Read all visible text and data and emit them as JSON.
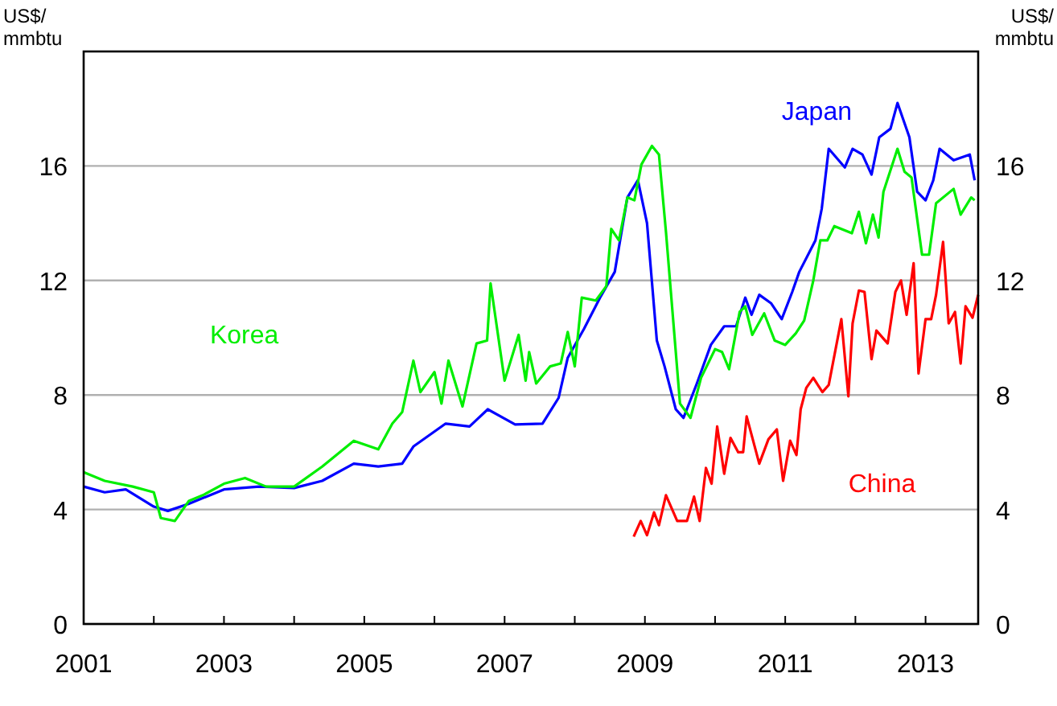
{
  "chart_data": {
    "type": "line",
    "ylabel": "US$/\nmmbtu",
    "y2label": "US$/\nmmbtu",
    "xlim": [
      2001,
      2013.75
    ],
    "xticks": [
      2001,
      {
        "value": 2002,
        "label": null
      },
      2003,
      {
        "value": 2004,
        "label": null
      },
      2005,
      {
        "value": 2006,
        "label": null
      },
      2007,
      {
        "value": 2008,
        "label": null
      },
      2009,
      {
        "value": 2010,
        "label": null
      },
      2011,
      {
        "value": 2012,
        "label": null
      },
      2013
    ],
    "ylim": [
      0,
      20
    ],
    "yticks": [
      0,
      4,
      8,
      12,
      16
    ],
    "y2lim": [
      0,
      20
    ],
    "y2ticks": [
      0,
      4,
      8,
      12,
      16
    ],
    "grid": "y",
    "legend": false,
    "marker": "none",
    "line_style": "solid",
    "series": [
      {
        "name": "Japan",
        "color": "#0000ff",
        "x": [
          2001,
          2001.3,
          2001.6,
          2002,
          2002.2,
          2002.5,
          2003,
          2003.5,
          2004,
          2004.4,
          2004.85,
          2005.2,
          2005.54,
          2005.7,
          2006.16,
          2006.5,
          2006.76,
          2007.15,
          2007.54,
          2007.77,
          2007.9,
          2008.13,
          2008.36,
          2008.57,
          2008.75,
          2008.9,
          2009.03,
          2009.17,
          2009.28,
          2009.44,
          2009.55,
          2009.74,
          2009.94,
          2010.13,
          2010.3,
          2010.43,
          2010.52,
          2010.63,
          2010.8,
          2010.95,
          2011.1,
          2011.2,
          2011.43,
          2011.52,
          2011.62,
          2011.85,
          2011.96,
          2012.1,
          2012.23,
          2012.34,
          2012.5,
          2012.6,
          2012.77,
          2012.88,
          2013,
          2013.11,
          2013.2,
          2013.4,
          2013.63,
          2013.7
        ],
        "values": [
          4.8,
          4.6,
          4.7,
          4.1,
          3.95,
          4.2,
          4.7,
          4.8,
          4.75,
          5.0,
          5.6,
          5.5,
          5.6,
          6.2,
          7.0,
          6.9,
          7.5,
          6.97,
          7.0,
          7.9,
          9.3,
          10.3,
          11.4,
          12.3,
          14.9,
          15.5,
          14.0,
          9.9,
          9.0,
          7.5,
          7.2,
          8.4,
          9.75,
          10.4,
          10.4,
          11.4,
          10.8,
          11.5,
          11.2,
          10.65,
          11.6,
          12.3,
          13.4,
          14.5,
          16.6,
          15.95,
          16.6,
          16.4,
          15.7,
          17.0,
          17.3,
          18.2,
          17.0,
          15.1,
          14.8,
          15.5,
          16.6,
          16.2,
          16.4,
          15.5
        ]
      },
      {
        "name": "Korea",
        "color": "#00ee00",
        "x": [
          2001,
          2001.3,
          2001.7,
          2002,
          2002.1,
          2002.3,
          2002.5,
          2002.7,
          2003,
          2003.3,
          2003.6,
          2004,
          2004.4,
          2004.85,
          2005.2,
          2005.4,
          2005.54,
          2005.7,
          2005.8,
          2006,
          2006.1,
          2006.2,
          2006.4,
          2006.6,
          2006.75,
          2006.8,
          2007,
          2007.2,
          2007.3,
          2007.35,
          2007.45,
          2007.65,
          2007.8,
          2007.9,
          2008,
          2008.1,
          2008.3,
          2008.45,
          2008.52,
          2008.63,
          2008.75,
          2008.85,
          2008.95,
          2009.1,
          2009.2,
          2009.3,
          2009.37,
          2009.5,
          2009.65,
          2009.8,
          2010,
          2010.1,
          2010.2,
          2010.35,
          2010.43,
          2010.53,
          2010.7,
          2010.85,
          2011,
          2011.15,
          2011.27,
          2011.4,
          2011.5,
          2011.6,
          2011.7,
          2011.95,
          2012.05,
          2012.15,
          2012.25,
          2012.33,
          2012.4,
          2012.6,
          2012.7,
          2012.8,
          2012.95,
          2013.05,
          2013.15,
          2013.4,
          2013.5,
          2013.65,
          2013.7
        ],
        "values": [
          5.3,
          5.0,
          4.8,
          4.6,
          3.7,
          3.6,
          4.3,
          4.5,
          4.9,
          5.1,
          4.8,
          4.8,
          5.5,
          6.4,
          6.1,
          7.0,
          7.4,
          9.2,
          8.1,
          8.8,
          7.7,
          9.2,
          7.6,
          9.8,
          9.9,
          11.9,
          8.5,
          10.1,
          8.5,
          9.5,
          8.4,
          9.0,
          9.1,
          10.2,
          9.0,
          11.4,
          11.3,
          11.8,
          13.8,
          13.4,
          14.9,
          14.8,
          16.05,
          16.7,
          16.4,
          13.7,
          11.6,
          7.7,
          7.2,
          8.6,
          9.6,
          9.5,
          8.9,
          10.9,
          11.1,
          10.1,
          10.85,
          9.9,
          9.75,
          10.15,
          10.6,
          12.0,
          13.4,
          13.4,
          13.9,
          13.65,
          14.4,
          13.3,
          14.3,
          13.5,
          15.1,
          16.6,
          15.8,
          15.6,
          12.9,
          12.9,
          14.7,
          15.2,
          14.3,
          14.9,
          14.8
        ]
      },
      {
        "name": "China",
        "color": "#ff0000",
        "x": [
          2008.84,
          2008.94,
          2009.03,
          2009.13,
          2009.2,
          2009.3,
          2009.46,
          2009.6,
          2009.7,
          2009.78,
          2009.87,
          2009.95,
          2010.03,
          2010.13,
          2010.22,
          2010.33,
          2010.4,
          2010.45,
          2010.63,
          2010.76,
          2010.88,
          2010.97,
          2011.07,
          2011.16,
          2011.22,
          2011.3,
          2011.4,
          2011.53,
          2011.62,
          2011.8,
          2011.9,
          2011.96,
          2012.05,
          2012.13,
          2012.23,
          2012.3,
          2012.46,
          2012.57,
          2012.65,
          2012.73,
          2012.83,
          2012.9,
          2013,
          2013.08,
          2013.15,
          2013.25,
          2013.33,
          2013.42,
          2013.5,
          2013.57,
          2013.67,
          2013.75
        ],
        "values": [
          3.05,
          3.6,
          3.1,
          3.9,
          3.45,
          4.5,
          3.6,
          3.6,
          4.45,
          3.6,
          5.45,
          4.9,
          6.9,
          5.25,
          6.5,
          6.0,
          6.0,
          7.25,
          5.6,
          6.45,
          6.8,
          5.0,
          6.4,
          5.9,
          7.5,
          8.25,
          8.6,
          8.1,
          8.35,
          10.65,
          7.95,
          10.5,
          11.65,
          11.6,
          9.25,
          10.25,
          9.8,
          11.6,
          12.0,
          10.8,
          12.6,
          8.75,
          10.65,
          10.65,
          11.5,
          13.35,
          10.5,
          10.9,
          9.1,
          11.1,
          10.7,
          11.5
        ]
      }
    ]
  }
}
